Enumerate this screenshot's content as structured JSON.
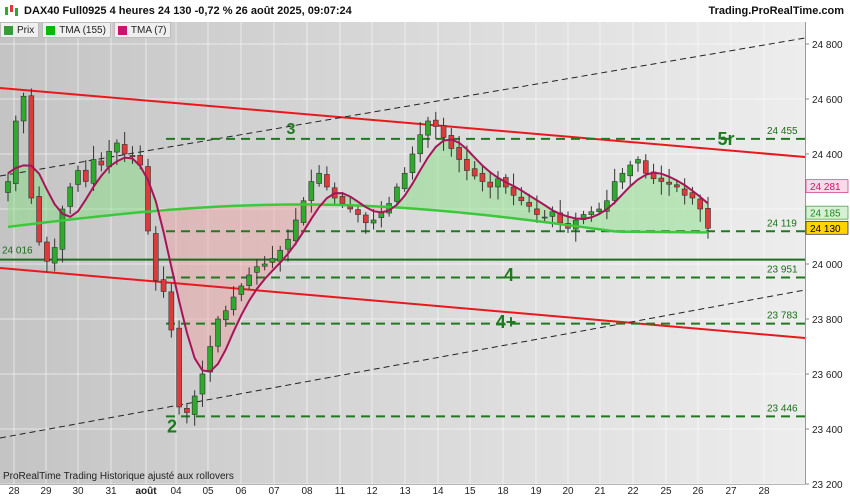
{
  "header": {
    "title": "DAX40 Full0925 4 heures 24 130 -0,72 % 26 août 2025, 09:07:24",
    "brand": "Trading.ProRealTime.com"
  },
  "legend": [
    {
      "label": "Prix",
      "color": "#3a9a3a"
    },
    {
      "label": "TMA (155)",
      "color": "#00bb00"
    },
    {
      "label": "TMA (7)",
      "color": "#c8146e"
    }
  ],
  "footer": "ProRealTime Trading  Historique ajusté aux rollovers",
  "x_axis": {
    "labels": [
      "28",
      "29",
      "30",
      "31",
      "août",
      "04",
      "05",
      "06",
      "07",
      "08",
      "11",
      "12",
      "13",
      "14",
      "15",
      "18",
      "19",
      "20",
      "21",
      "22",
      "25",
      "26",
      "27",
      "28"
    ]
  },
  "y_axis": {
    "ticks": [
      "24 800",
      "24 600",
      "24 400",
      "24 200",
      "24 000",
      "23 800",
      "23 600",
      "23 400",
      "23 200"
    ]
  },
  "price_labels": [
    {
      "text": "24 281",
      "fg": "#c8146e",
      "bg": "#f6dce9"
    },
    {
      "text": "24 185",
      "fg": "#1a8a1a",
      "bg": "#d6f0d6"
    },
    {
      "text": "24 130",
      "fg": "#000000",
      "bg": "#ffd400"
    }
  ],
  "level_labels": [
    "24 455",
    "24 119",
    "23 951",
    "23 783",
    "23 446"
  ],
  "left_label": "24 016",
  "wave_labels": [
    "3",
    "5r",
    "4",
    "4+",
    "2"
  ],
  "colors": {
    "up": "#2faa2f",
    "down": "#dd3b3b",
    "tma155": "#3cc83c",
    "tma7": "#a8145a",
    "channel": "#e8191c",
    "support_dashed": "#1f7a1f"
  },
  "chart_data": {
    "type": "candlestick",
    "title": "DAX40 Full0925 4 heures",
    "timeframe": "4 heures",
    "last": 24130,
    "change_pct": -0.72,
    "timestamp": "26 août 2025, 09:07:24",
    "ylim": [
      23200,
      24880
    ],
    "y_ticks": [
      23200,
      23400,
      23600,
      23800,
      24000,
      24200,
      24400,
      24600,
      24800
    ],
    "x_labels": [
      "28",
      "29",
      "30",
      "31",
      "août",
      "04",
      "05",
      "06",
      "07",
      "08",
      "11",
      "12",
      "13",
      "14",
      "15",
      "18",
      "19",
      "20",
      "21",
      "22",
      "25",
      "26",
      "27",
      "28"
    ],
    "horizontal_levels": [
      24455,
      24119,
      24016,
      23951,
      23783,
      23446
    ],
    "indicators": [
      {
        "name": "TMA (155)",
        "last": 24185
      },
      {
        "name": "TMA (7)",
        "last": 24281
      }
    ],
    "close_series": [
      24300,
      24520,
      24610,
      24240,
      24080,
      24010,
      24060,
      24200,
      24280,
      24340,
      24300,
      24380,
      24360,
      24410,
      24440,
      24400,
      24390,
      24360,
      24120,
      23940,
      23900,
      23760,
      23480,
      23460,
      23520,
      23600,
      23700,
      23800,
      23830,
      23880,
      23920,
      23960,
      23990,
      24000,
      24020,
      24050,
      24090,
      24160,
      24230,
      24300,
      24330,
      24280,
      24240,
      24220,
      24200,
      24180,
      24150,
      24160,
      24190,
      24220,
      24280,
      24330,
      24400,
      24470,
      24520,
      24500,
      24460,
      24420,
      24380,
      24340,
      24320,
      24300,
      24280,
      24310,
      24280,
      24250,
      24230,
      24210,
      24180,
      24170,
      24190,
      24150,
      24130,
      24160,
      24180,
      24190,
      24200,
      24230,
      24300,
      24330,
      24360,
      24380,
      24330,
      24310,
      24300,
      24290,
      24280,
      24250,
      24240,
      24200,
      24130
    ]
  }
}
